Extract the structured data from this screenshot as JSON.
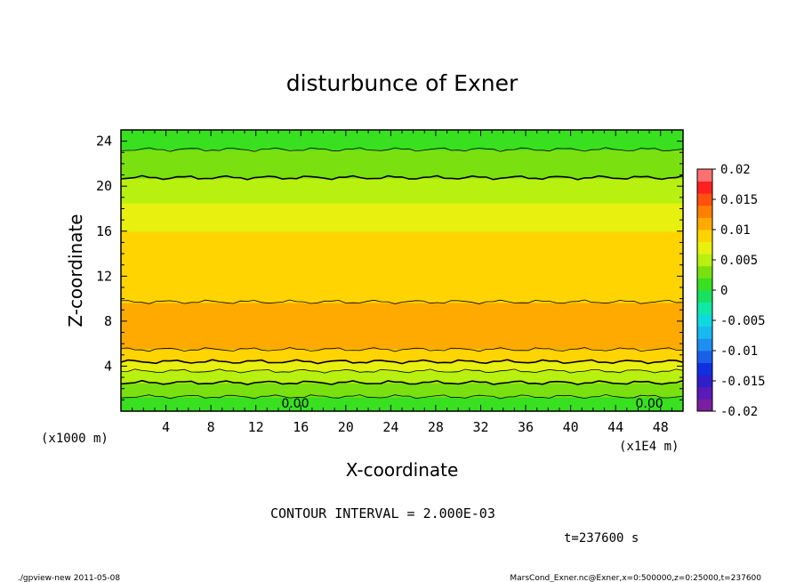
{
  "chart_data": {
    "type": "heatmap",
    "title": "disturbunce of Exner",
    "xlabel": "X-coordinate",
    "ylabel": "Z-coordinate",
    "x_units": "(x1E4 m)",
    "y_units": "(x1000 m)",
    "xlim": [
      0,
      50
    ],
    "ylim": [
      0,
      25
    ],
    "x_ticks": [
      "4",
      "8",
      "12",
      "16",
      "20",
      "24",
      "28",
      "32",
      "36",
      "40",
      "44",
      "48"
    ],
    "y_ticks": [
      "4",
      "8",
      "12",
      "16",
      "20",
      "24"
    ],
    "colorbar": {
      "levels": [
        -0.02,
        -0.018,
        -0.016,
        -0.014,
        -0.012,
        -0.01,
        -0.008,
        -0.006,
        -0.004,
        -0.002,
        0,
        0.002,
        0.004,
        0.006,
        0.008,
        0.01,
        0.012,
        0.014,
        0.016,
        0.018,
        0.02
      ],
      "tick_labels": [
        "0.02",
        "0.015",
        "0.01",
        "0.005",
        "0",
        "-0.005",
        "-0.01",
        "-0.015",
        "-0.02"
      ],
      "colors": [
        "#7a1fa0",
        "#5a1ab8",
        "#2e1fc8",
        "#1030e0",
        "#1a5fe8",
        "#1e8ef0",
        "#18b8f0",
        "#10d8e0",
        "#10e8a8",
        "#18e060",
        "#38e020",
        "#7ae010",
        "#b8f010",
        "#e8f010",
        "#ffd400",
        "#ffaa00",
        "#ff8000",
        "#ff5010",
        "#ff2020",
        "#ff7070"
      ]
    },
    "contour_interval": "CONTOUR INTERVAL = 2.000E-03",
    "time_label": "t=237600 s",
    "contour_labels": [
      "0.00",
      "0.00"
    ],
    "profile": {
      "z": [
        0,
        0.8,
        1.6,
        2.4,
        3.2,
        4.0,
        4.8,
        5.6,
        6.4,
        7.2,
        8.0,
        9.0,
        10.0,
        11.5,
        13.0,
        14.5,
        16.0,
        17.3,
        18.5,
        19.8,
        21.0,
        22.3,
        23.5,
        25.0
      ],
      "value": [
        0.0,
        0.0012,
        0.0025,
        0.0038,
        0.005,
        0.0072,
        0.0088,
        0.0102,
        0.0108,
        0.011,
        0.0108,
        0.0105,
        0.0098,
        0.0093,
        0.009,
        0.0085,
        0.008,
        0.007,
        0.006,
        0.0048,
        0.0038,
        0.0028,
        0.0018,
        0.001
      ]
    }
  },
  "footer": {
    "left": "./gpview-new   2011-05-08",
    "right": "MarsCond_Exner.nc@Exner,x=0:500000,z=0:25000,t=237600"
  }
}
